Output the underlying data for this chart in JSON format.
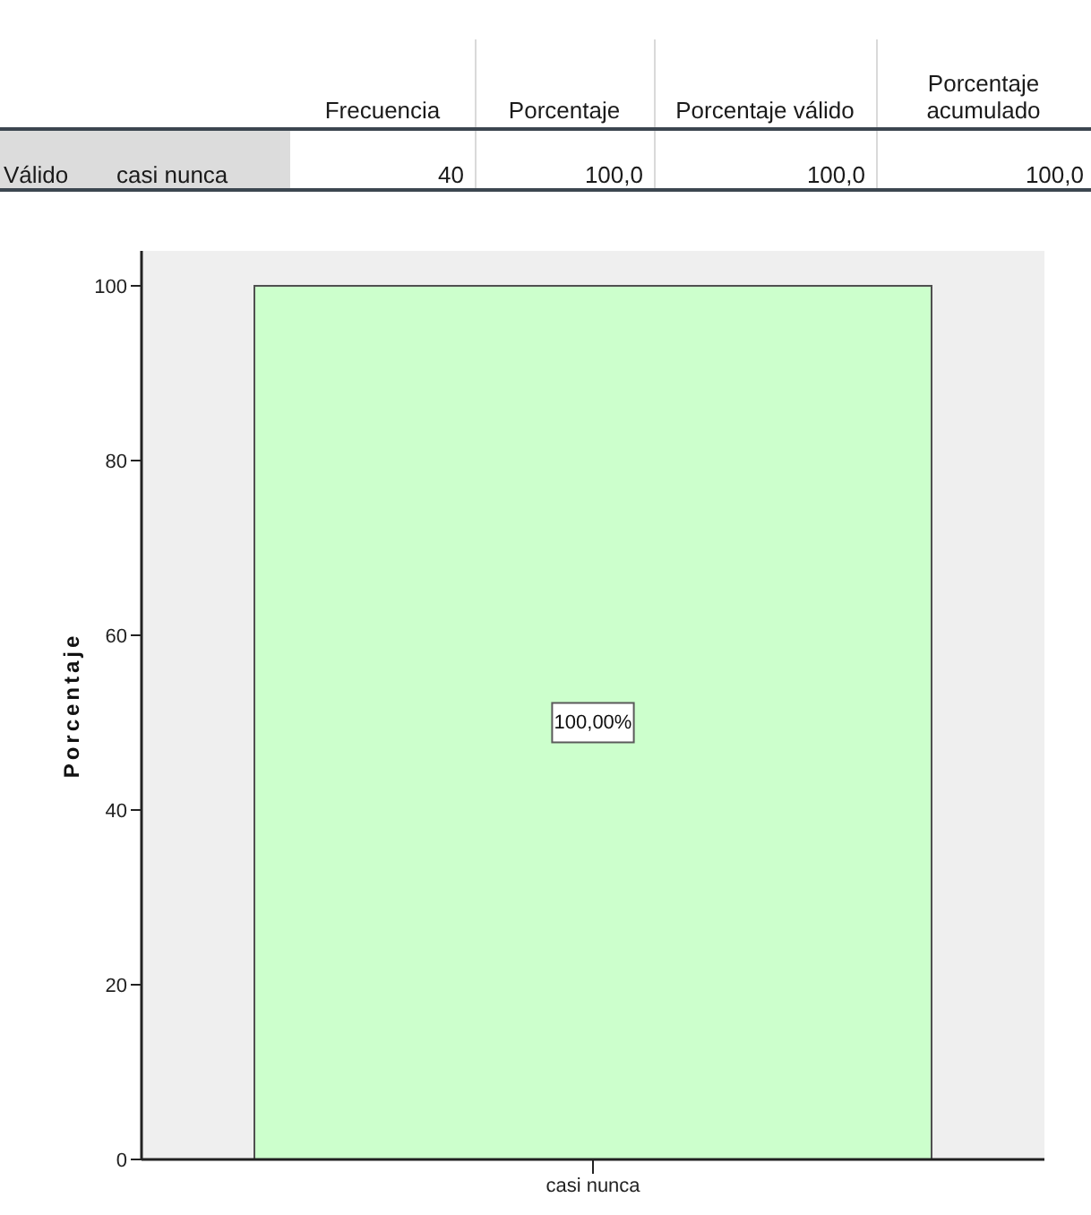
{
  "chart_data": [
    {
      "type": "other",
      "annotations": [
        "Frecuencia",
        "Porcentaje",
        "Porcentaje válido",
        "Porcentaje acumulado",
        "Válido",
        "casi nunca",
        "40",
        "100,0",
        "100,0",
        "100,0"
      ]
    },
    {
      "type": "bar",
      "ylabel": "Porcentaje",
      "categories": [
        "casi nunca"
      ],
      "values": [
        100
      ],
      "color": "#ccffcc",
      "ylim": [
        0,
        104
      ],
      "yticks": [
        0,
        20,
        40,
        60,
        80,
        100
      ],
      "value_labels": [
        "100,00%"
      ]
    }
  ]
}
